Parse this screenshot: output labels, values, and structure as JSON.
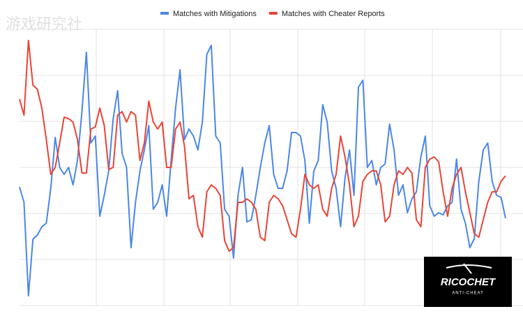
{
  "chart_data": {
    "type": "line",
    "watermark": "游戏研究社",
    "logo": {
      "title": "RICOCHET",
      "subtitle": "ANTI-CHEAT"
    },
    "series": [
      {
        "name": "Matches with Mitigations",
        "color": "#4a86e8",
        "values": [
          170,
          148,
          14,
          95,
          101,
          113,
          118,
          168,
          241,
          198,
          188,
          198,
          173,
          208,
          278,
          363,
          233,
          243,
          128,
          158,
          193,
          268,
          308,
          218,
          198,
          83,
          148,
          193,
          223,
          258,
          138,
          148,
          173,
          128,
          208,
          283,
          338,
          238,
          253,
          243,
          223,
          263,
          360,
          373,
          243,
          233,
          138,
          128,
          68,
          158,
          198,
          120,
          123,
          158,
          198,
          233,
          258,
          188,
          168,
          168,
          193,
          248,
          248,
          243,
          208,
          118,
          193,
          208,
          288,
          263,
          193,
          168,
          113,
          183,
          223,
          158,
          313,
          323,
          198,
          208,
          173,
          198,
          203,
          260,
          223,
          158,
          173,
          133,
          153,
          163,
          213,
          243,
          143,
          128,
          133,
          130,
          143,
          148,
          210,
          138,
          118,
          83,
          96,
          178,
          223,
          233,
          178,
          158,
          155,
          125
        ]
      },
      {
        "name": "Matches with Cheater Reports",
        "color": "#ea4335",
        "values": [
          296,
          273,
          380,
          316,
          310,
          283,
          238,
          188,
          198,
          233,
          270,
          268,
          263,
          238,
          190,
          190,
          253,
          256,
          283,
          258,
          195,
          198,
          273,
          278,
          263,
          278,
          273,
          208,
          233,
          293,
          263,
          253,
          263,
          198,
          198,
          253,
          263,
          228,
          153,
          158,
          113,
          98,
          163,
          173,
          168,
          158,
          93,
          78,
          83,
          148,
          148,
          153,
          148,
          138,
          98,
          93,
          148,
          158,
          153,
          143,
          123,
          103,
          98,
          138,
          188,
          173,
          168,
          173,
          138,
          128,
          168,
          188,
          243,
          213,
          173,
          113,
          128,
          178,
          188,
          193,
          193,
          173,
          120,
          128,
          173,
          193,
          188,
          198,
          190,
          123,
          113,
          198,
          210,
          213,
          206,
          163,
          128,
          168,
          188,
          198,
          163,
          133,
          103,
          98,
          123,
          148,
          163,
          163,
          178,
          186
        ]
      }
    ],
    "xlim": [
      0,
      109
    ],
    "xticks": [
      17.2,
      32.4,
      47.2,
      62.4,
      77.4,
      92.6,
      107.9
    ],
    "ylim": [
      0,
      396
    ],
    "yticks": [
      0,
      66,
      132,
      198,
      264,
      330,
      396
    ],
    "grid": true,
    "tick_labels": false,
    "legend": "top"
  }
}
